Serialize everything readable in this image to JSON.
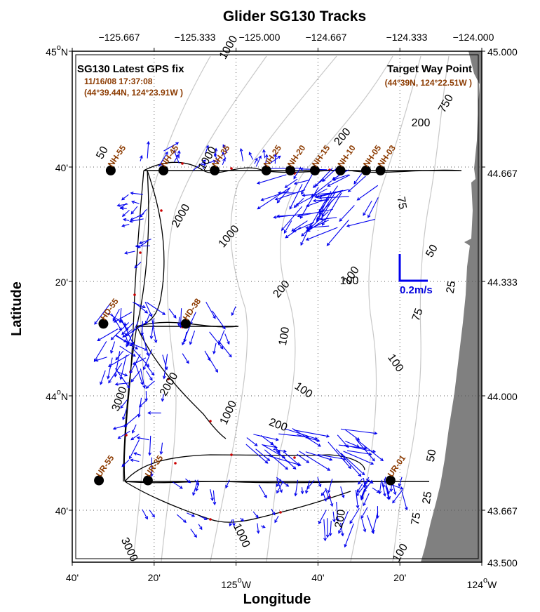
{
  "title": "Glider SG130 Tracks",
  "x_axis_label": "Longitude",
  "y_axis_label": "Latitude",
  "top_ticks": [
    "−125.667",
    "−125.333",
    "−125.000",
    "−124.667",
    "−124.333",
    "−124.000"
  ],
  "bottom_ticks": [
    {
      "main": "40'"
    },
    {
      "main": "20'"
    },
    {
      "main": "125",
      "sup": "o",
      "suf": "W"
    },
    {
      "main": "40'"
    },
    {
      "main": "20'"
    },
    {
      "main": "124",
      "sup": "o",
      "suf": "W"
    }
  ],
  "left_ticks": [
    {
      "main": "45",
      "sup": "o",
      "suf": "N"
    },
    {
      "main": "40'"
    },
    {
      "main": "20'"
    },
    {
      "main": "44",
      "sup": "o",
      "suf": "N"
    },
    {
      "main": "40'"
    }
  ],
  "right_ticks": [
    "45.000",
    "44.667",
    "44.333",
    "44.000",
    "43.667",
    "43.500"
  ],
  "latest_fix": {
    "title": "SG130 Latest GPS fix",
    "time": "11/16/08 17:37:08",
    "pos": "(44°39.44N, 124°23.91W )"
  },
  "target": {
    "title": "Target Way Point",
    "pos": "(44°39N, 124°22.51W )"
  },
  "scale_label": "0.2m/s",
  "stations": [
    {
      "label": "NH-55",
      "lon": -125.667,
      "lat": 44.65
    },
    {
      "label": "NH-45",
      "lon": -125.43,
      "lat": 44.65
    },
    {
      "label": "NH-35",
      "lon": -125.2,
      "lat": 44.65
    },
    {
      "label": "NH-25",
      "lon": -124.968,
      "lat": 44.65
    },
    {
      "label": "NH-20",
      "lon": -124.86,
      "lat": 44.65
    },
    {
      "label": "NH-15",
      "lon": -124.75,
      "lat": 44.65
    },
    {
      "label": "NH-10",
      "lon": -124.635,
      "lat": 44.65
    },
    {
      "label": "NH-05",
      "lon": -124.52,
      "lat": 44.65
    },
    {
      "label": "NH-03",
      "lon": -124.455,
      "lat": 44.65
    },
    {
      "label": "HD-55",
      "lon": -125.7,
      "lat": 44.2
    },
    {
      "label": "HD-38",
      "lon": -125.33,
      "lat": 44.2
    },
    {
      "label": "UR-55",
      "lon": -125.72,
      "lat": 43.74
    },
    {
      "label": "UR-35",
      "lon": -125.5,
      "lat": 43.74
    },
    {
      "label": "UR-01",
      "lon": -124.41,
      "lat": 43.74
    }
  ],
  "contour_labels": [
    "1000",
    "1000",
    "2000",
    "1000",
    "200",
    "200",
    "100",
    "100",
    "75",
    "50",
    "25",
    "75",
    "100",
    "100",
    "200",
    "2000",
    "1000",
    "3000",
    "100",
    "200",
    "50",
    "25",
    "75",
    "100",
    "200",
    "3000",
    "1000",
    "750",
    "50"
  ],
  "colors": {
    "land": "#808080",
    "current_vectors": "#0000ee",
    "track": "#000000",
    "track_dots": "#cc0000",
    "labels": "#8b3a00",
    "contours": "#c8c8c8"
  }
}
